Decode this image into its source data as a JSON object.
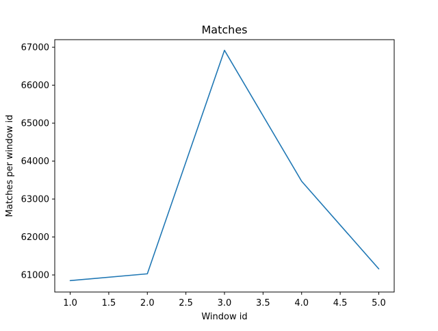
{
  "chart_data": {
    "type": "line",
    "title": "Matches",
    "xlabel": "Window id",
    "ylabel": "Matches per window id",
    "x": [
      1.0,
      2.0,
      3.0,
      4.0,
      5.0
    ],
    "series": [
      {
        "values": [
          60850,
          61030,
          66920,
          63470,
          61160
        ],
        "color": "#1f77b4"
      }
    ],
    "xlim": [
      0.8,
      5.2
    ],
    "ylim": [
      60550,
      67200
    ],
    "x_ticks": [
      1.0,
      1.5,
      2.0,
      2.5,
      3.0,
      3.5,
      4.0,
      4.5,
      5.0
    ],
    "x_tick_labels": [
      "1.0",
      "1.5",
      "2.0",
      "2.5",
      "3.0",
      "3.5",
      "4.0",
      "4.5",
      "5.0"
    ],
    "y_ticks": [
      61000,
      62000,
      63000,
      64000,
      65000,
      66000,
      67000
    ],
    "y_tick_labels": [
      "61000",
      "62000",
      "63000",
      "64000",
      "65000",
      "66000",
      "67000"
    ],
    "grid": false,
    "legend": "none"
  }
}
